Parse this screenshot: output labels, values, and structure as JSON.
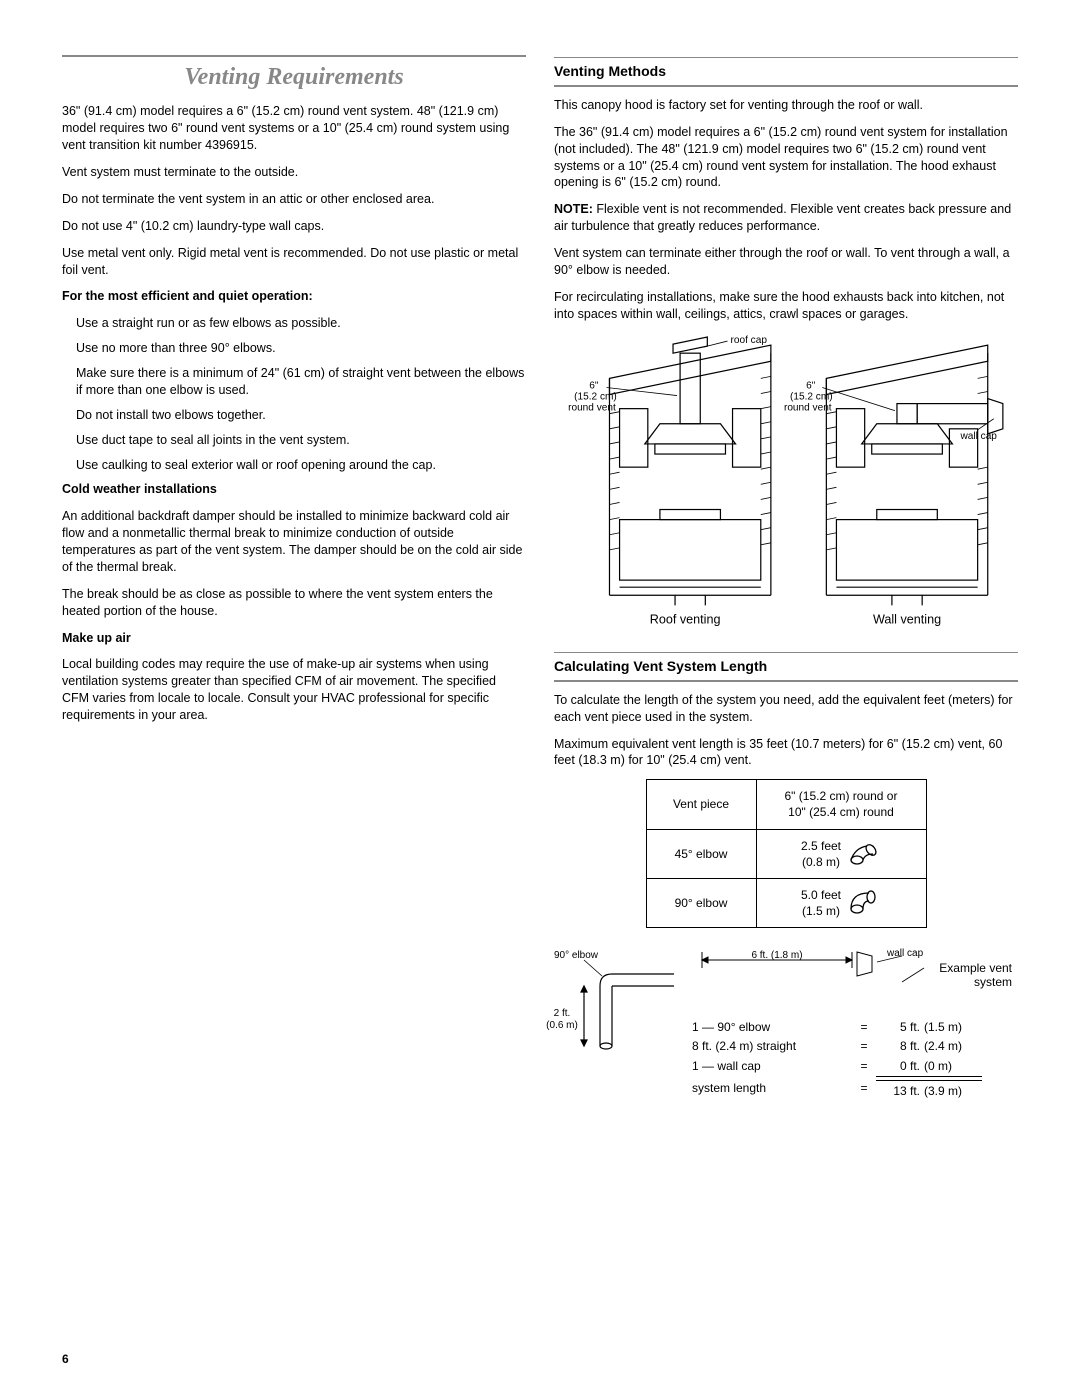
{
  "pageNumber": "6",
  "left": {
    "title": "Venting Requirements",
    "p1": "36\" (91.4 cm) model requires a 6\" (15.2 cm) round vent system. 48\" (121.9 cm) model requires two 6\" round vent systems or a 10\" (25.4 cm) round system using vent transition kit number 4396915.",
    "p2": "Vent system must terminate to the outside.",
    "p3": "Do not terminate the vent system in an attic or other enclosed area.",
    "p4": "Do not use 4\" (10.2 cm) laundry-type wall caps.",
    "p5": "Use metal vent only. Rigid metal vent is recommended. Do not use plastic or metal foil vent.",
    "sub1": "For the most efficient and quiet operation:",
    "b1": "Use a straight run or as few elbows as possible.",
    "b2": "Use no more than three 90° elbows.",
    "b3": "Make sure there is a minimum of 24\" (61 cm) of straight vent between the elbows if more than one elbow is used.",
    "b4": "Do not install two elbows together.",
    "b5": "Use duct tape to seal all joints in the vent system.",
    "b6": "Use caulking to seal exterior wall or roof opening around the cap.",
    "sub2": "Cold weather installations",
    "c1": "An additional backdraft damper should be installed to minimize backward cold air flow and a nonmetallic thermal break to minimize conduction of outside temperatures as part of the vent system. The damper should be on the cold air side of the thermal break.",
    "c2": "The break should be as close as possible to where the vent system enters the heated portion of the house.",
    "sub3": "Make up air",
    "m1": "Local building codes may require the use of make-up air systems when using ventilation systems greater than specified CFM of air movement. The specified CFM varies from locale to locale. Consult your HVAC professional for specific requirements in your area."
  },
  "right": {
    "h1": "Venting Methods",
    "p1": "This canopy hood is factory set for venting through the roof or wall.",
    "p2": "The 36\" (91.4 cm) model requires a 6\" (15.2 cm) round vent system for installation (not included). The 48\" (121.9 cm) model requires two 6\" (15.2 cm) round vent systems or a 10\" (25.4 cm) round vent system for installation. The hood exhaust opening is 6\" (15.2 cm) round.",
    "noteLabel": "NOTE:",
    "noteText": " Flexible vent is not recommended. Flexible vent creates back pressure and air turbulence that greatly reduces performance.",
    "p3": "Vent system can terminate either through the roof or wall. To vent through a wall, a 90° elbow is needed.",
    "p4": "For recirculating installations, make sure the hood exhausts back into kitchen, not into spaces within wall, ceilings, attics, crawl spaces or garages.",
    "diagram": {
      "roofCap": "roof cap",
      "wallCap": "wall cap",
      "ventLabel1": "6\"",
      "ventLabel2": "(15.2 cm)",
      "ventLabel3": "round vent",
      "cap1": "Roof venting",
      "cap2": "Wall venting"
    },
    "h2": "Calculating Vent System Length",
    "cp1": "To calculate the length of the system you need, add the equivalent feet (meters) for each vent piece used in the system.",
    "cp2": "Maximum equivalent vent length is 35 feet (10.7 meters) for 6\" (15.2 cm) vent, 60 feet (18.3 m) for 10\" (25.4 cm) vent.",
    "table": {
      "h1": "Vent piece",
      "h2a": "6\" (15.2 cm) round or",
      "h2b": "10\" (25.4 cm) round",
      "r1c1": "45° elbow",
      "r1c2a": "2.5 feet",
      "r1c2b": "(0.8 m)",
      "r2c1": "90° elbow",
      "r2c2a": "5.0 feet",
      "r2c2b": "(1.5 m)"
    },
    "example": {
      "elbow90": "90° elbow",
      "span6ft": "6 ft. (1.8 m)",
      "wallCap": "wall cap",
      "exLabel1": "Example vent",
      "exLabel2": "system",
      "v2ft": "2 ft.",
      "v06m": "(0.6 m)",
      "rows": [
        {
          "lbl": "1 — 90° elbow",
          "eq": "=",
          "ft": "5 ft.",
          "m": "(1.5 m)"
        },
        {
          "lbl": "8 ft. (2.4 m) straight",
          "eq": "=",
          "ft": "8 ft.",
          "m": "(2.4 m)"
        },
        {
          "lbl": "1 — wall cap",
          "eq": "=",
          "ft": "0 ft.",
          "m": "(0 m)"
        },
        {
          "lbl": "system length",
          "eq": "=",
          "ft": "13 ft.",
          "m": "(3.9 m)"
        }
      ]
    }
  }
}
